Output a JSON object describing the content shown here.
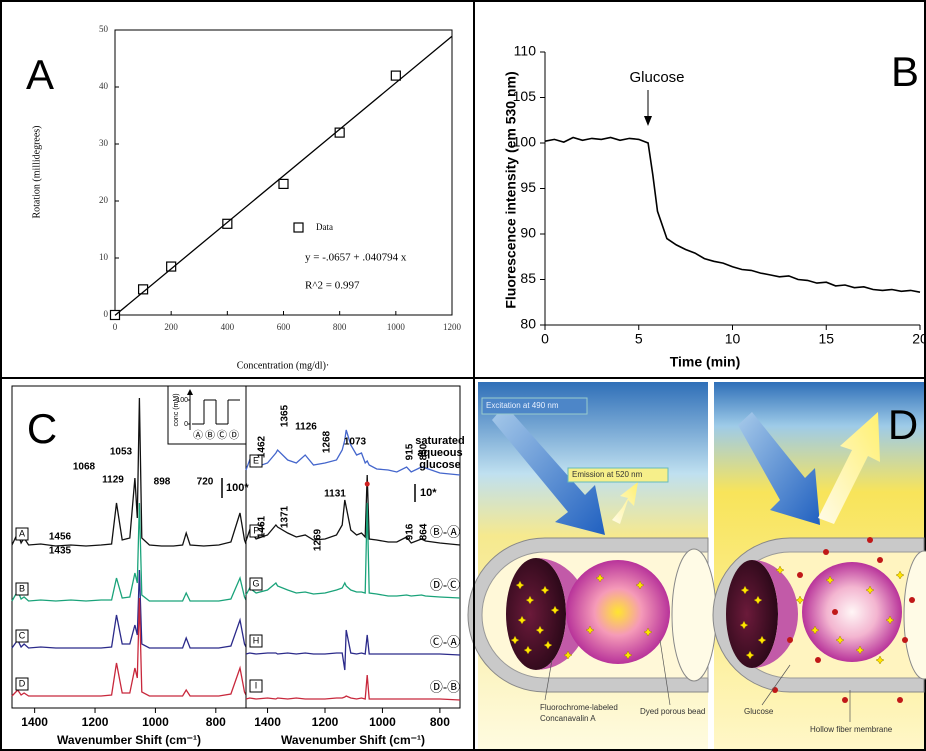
{
  "chart_data": [
    {
      "type": "scatter",
      "label": "A",
      "xlabel": "Concentration (mg/dl)·",
      "ylabel": "Rotation (millidegrees)",
      "xlim": [
        0,
        1200
      ],
      "ylim": [
        0,
        50
      ],
      "xticks": [
        0,
        200,
        400,
        600,
        800,
        1000,
        1200
      ],
      "yticks": [
        0,
        10,
        20,
        30,
        40,
        50
      ],
      "series": [
        {
          "name": "Data",
          "color": "#000000",
          "marker": "square",
          "x": [
            0,
            100,
            200,
            400,
            600,
            800,
            1000
          ],
          "values": [
            0,
            4.5,
            8.5,
            16,
            23,
            32,
            42
          ]
        },
        {
          "color": "#000000",
          "line": true,
          "x": [
            0,
            1200
          ],
          "values": [
            -0.0657,
            48.9
          ]
        }
      ],
      "annotations": [
        "y = -.0657 + .040794 x",
        "R^2 = 0.997"
      ]
    },
    {
      "type": "line",
      "label": "B",
      "xlabel": "Time (min)",
      "ylabel": "Fluorescence intensity (em 530 nm)",
      "xlim": [
        0,
        20
      ],
      "ylim": [
        80,
        110
      ],
      "xticks": [
        0,
        5,
        10,
        15,
        20
      ],
      "yticks": [
        80,
        85,
        90,
        95,
        100,
        105,
        110
      ],
      "annotation": "Glucose",
      "series": [
        {
          "color": "#000000",
          "x": [
            0,
            0.5,
            1,
            1.5,
            2,
            2.5,
            3,
            3.5,
            4,
            4.5,
            5,
            5.5,
            5.75,
            6,
            6.5,
            7,
            7.5,
            8,
            8.5,
            9,
            9.5,
            10,
            10.5,
            11,
            11.5,
            12,
            12.5,
            13,
            13.5,
            14,
            14.5,
            15,
            15.5,
            16,
            16.5,
            17,
            17.5,
            18,
            18.5,
            19,
            19.5,
            20
          ],
          "values": [
            100.2,
            100.4,
            100.1,
            100.6,
            100.3,
            100.5,
            100.4,
            100.6,
            100.3,
            100.5,
            100.4,
            100.0,
            96.5,
            92.5,
            89.5,
            88.8,
            88.3,
            87.9,
            87.3,
            87.0,
            86.8,
            86.4,
            86.1,
            86.0,
            85.7,
            85.5,
            85.3,
            85.4,
            85.0,
            84.9,
            84.6,
            84.7,
            84.3,
            84.4,
            84.1,
            84.2,
            83.9,
            83.8,
            83.9,
            83.7,
            83.8,
            83.6
          ]
        }
      ]
    },
    {
      "type": "spectra",
      "label": "C",
      "xlabel": "Wavenumber Shift (cm⁻¹)",
      "xlim": [
        1475,
        700
      ],
      "xticks": [
        1400,
        1200,
        1000,
        800
      ],
      "scale_bar": "100*",
      "x": [
        1475,
        1456,
        1445,
        1435,
        1420,
        1380,
        1330,
        1280,
        1230,
        1180,
        1145,
        1129,
        1110,
        1085,
        1068,
        1060,
        1053,
        1045,
        1020,
        980,
        940,
        910,
        898,
        885,
        840,
        790,
        750,
        720,
        705,
        700
      ],
      "series": [
        {
          "name": "A",
          "color": "#111111",
          "peaks": [
            1456,
            1435,
            1129,
            1068,
            1053,
            898,
            720
          ],
          "values": [
            3,
            15,
            5,
            10,
            3,
            4,
            2,
            3,
            2,
            3,
            4,
            45,
            8,
            10,
            70,
            30,
            150,
            10,
            3,
            2,
            2,
            3,
            15,
            3,
            2,
            3,
            6,
            35,
            8,
            4
          ]
        },
        {
          "name": "B",
          "color": "#1aa37a",
          "values": [
            2,
            12,
            4,
            6,
            2,
            3,
            2,
            3,
            2,
            3,
            3,
            25,
            5,
            6,
            30,
            20,
            100,
            8,
            2,
            2,
            2,
            2,
            10,
            2,
            2,
            2,
            4,
            25,
            6,
            3
          ]
        },
        {
          "name": "C",
          "color": "#2b2a8a",
          "values": [
            2,
            10,
            3,
            6,
            2,
            3,
            2,
            2,
            2,
            2,
            3,
            35,
            6,
            6,
            25,
            15,
            80,
            6,
            2,
            2,
            2,
            2,
            12,
            2,
            2,
            2,
            4,
            30,
            6,
            3
          ]
        },
        {
          "name": "D",
          "color": "#c8283c",
          "values": [
            2,
            8,
            3,
            5,
            2,
            2,
            2,
            2,
            2,
            2,
            3,
            35,
            5,
            5,
            30,
            20,
            100,
            6,
            2,
            2,
            2,
            2,
            8,
            2,
            2,
            2,
            4,
            30,
            6,
            3
          ]
        }
      ],
      "inset": {
        "ylabel": "conc (mM)",
        "ylim": [
          0,
          100
        ],
        "yticks": [
          0,
          100
        ],
        "categories": [
          "Ⓐ",
          "Ⓑ",
          "Ⓒ",
          "Ⓓ"
        ],
        "values": [
          0,
          100,
          0,
          100
        ]
      }
    },
    {
      "type": "spectra",
      "xlabel": "Wavenumber Shift (cm⁻¹)",
      "xlim": [
        1475,
        730
      ],
      "xticks": [
        1400,
        1200,
        1000,
        800
      ],
      "scale_bar": "10*",
      "x": [
        1475,
        1462,
        1440,
        1400,
        1371,
        1365,
        1330,
        1300,
        1269,
        1240,
        1200,
        1160,
        1140,
        1131,
        1126,
        1110,
        1090,
        1073,
        1060,
        1053,
        1046,
        1020,
        980,
        950,
        916,
        900,
        864,
        850,
        800,
        730
      ],
      "series": [
        {
          "name": "E",
          "color": "#4466cc",
          "tag": [
            "saturated",
            "aqueous",
            "glucose"
          ],
          "peaks": [
            1462,
            1365,
            1268,
            1126,
            1073,
            915,
            850
          ],
          "values": [
            5,
            15,
            8,
            12,
            22,
            25,
            15,
            12,
            20,
            10,
            12,
            15,
            25,
            35,
            45,
            30,
            20,
            22,
            12,
            14,
            10,
            6,
            5,
            3,
            8,
            3,
            8,
            7,
            2,
            0
          ]
        },
        {
          "name": "F",
          "color": "#111111",
          "tag": "Ⓑ-Ⓐ",
          "peaks": [
            1461,
            1371,
            1269,
            1131,
            916,
            864
          ],
          "values": [
            4,
            15,
            6,
            10,
            20,
            18,
            12,
            8,
            10,
            5,
            6,
            10,
            20,
            45,
            38,
            15,
            10,
            12,
            8,
            70,
            6,
            5,
            3,
            3,
            8,
            2,
            6,
            4,
            2,
            0
          ]
        },
        {
          "name": "G",
          "color": "#1aa37a",
          "tag": "Ⓓ-Ⓒ",
          "values": [
            3,
            10,
            5,
            8,
            15,
            12,
            8,
            5,
            6,
            4,
            5,
            8,
            10,
            15,
            12,
            8,
            6,
            6,
            5,
            95,
            5,
            4,
            2,
            2,
            3,
            2,
            3,
            2,
            1,
            0
          ]
        },
        {
          "name": "H",
          "color": "#2b2a8a",
          "tag": "Ⓒ-Ⓐ",
          "values": [
            1,
            2,
            1,
            2,
            2,
            1,
            2,
            1,
            2,
            1,
            1,
            2,
            2,
            -15,
            25,
            2,
            1,
            2,
            1,
            20,
            1,
            1,
            1,
            1,
            1,
            1,
            1,
            1,
            1,
            0
          ]
        },
        {
          "name": "I",
          "color": "#c8283c",
          "tag": "Ⓓ-Ⓑ",
          "values": [
            1,
            2,
            1,
            2,
            1,
            2,
            1,
            2,
            1,
            1,
            1,
            2,
            2,
            3,
            4,
            2,
            1,
            2,
            1,
            25,
            1,
            1,
            1,
            1,
            1,
            1,
            1,
            1,
            1,
            0
          ]
        }
      ]
    }
  ],
  "diagram": {
    "label": "D",
    "excitation": "Excitation at 490 nm",
    "emission": "Emission at 520 nm",
    "concanavalin": [
      "Fluorochrome-labeled",
      "Concanavalin A"
    ],
    "bead": "Dyed porous bead",
    "glucose": "Glucose",
    "membrane": "Hollow fiber membrane"
  }
}
